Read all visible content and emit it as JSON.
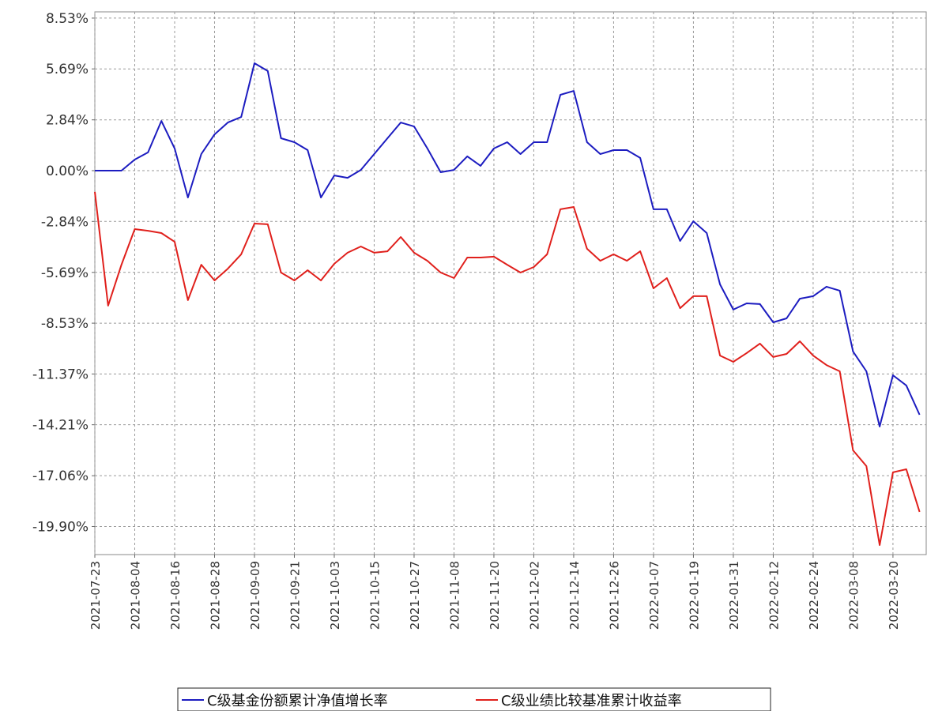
{
  "chart_data": {
    "type": "line",
    "x": [
      "2021-07-23",
      "2021-07-27",
      "2021-07-31",
      "2021-08-04",
      "2021-08-08",
      "2021-08-12",
      "2021-08-16",
      "2021-08-20",
      "2021-08-24",
      "2021-08-28",
      "2021-09-01",
      "2021-09-05",
      "2021-09-09",
      "2021-09-13",
      "2021-09-17",
      "2021-09-21",
      "2021-09-25",
      "2021-09-29",
      "2021-10-03",
      "2021-10-07",
      "2021-10-11",
      "2021-10-15",
      "2021-10-19",
      "2021-10-23",
      "2021-10-27",
      "2021-10-31",
      "2021-11-04",
      "2021-11-08",
      "2021-11-12",
      "2021-11-16",
      "2021-11-20",
      "2021-11-24",
      "2021-11-28",
      "2021-12-02",
      "2021-12-06",
      "2021-12-10",
      "2021-12-14",
      "2021-12-18",
      "2021-12-22",
      "2021-12-26",
      "2021-12-30",
      "2022-01-03",
      "2022-01-07",
      "2022-01-11",
      "2022-01-15",
      "2022-01-19",
      "2022-01-23",
      "2022-01-27",
      "2022-01-31",
      "2022-02-04",
      "2022-02-08",
      "2022-02-12",
      "2022-02-16",
      "2022-02-20",
      "2022-02-24",
      "2022-02-28",
      "2022-03-04",
      "2022-03-08",
      "2022-03-12",
      "2022-03-16",
      "2022-03-20",
      "2022-03-24",
      "2022-03-28"
    ],
    "xlim": [
      "2021-07-23",
      "2022-03-30"
    ],
    "xticks": [
      "2021-07-23",
      "2021-08-04",
      "2021-08-16",
      "2021-08-28",
      "2021-09-09",
      "2021-09-21",
      "2021-10-03",
      "2021-10-15",
      "2021-10-27",
      "2021-11-08",
      "2021-11-20",
      "2021-12-02",
      "2021-12-14",
      "2021-12-26",
      "2022-01-07",
      "2022-01-19",
      "2022-01-31",
      "2022-02-12",
      "2022-02-24",
      "2022-03-08",
      "2022-03-20"
    ],
    "ylim": [
      -21.47,
      8.88
    ],
    "yticks": [
      {
        "value": 8.53,
        "label": "8.53%"
      },
      {
        "value": 5.69,
        "label": "5.69%"
      },
      {
        "value": 2.84,
        "label": "2.84%"
      },
      {
        "value": 0,
        "label": "0.00%"
      },
      {
        "value": -2.84,
        "label": "-2.84%"
      },
      {
        "value": -5.69,
        "label": "-5.69%"
      },
      {
        "value": -8.53,
        "label": "-8.53%"
      },
      {
        "value": -11.37,
        "label": "-11.37%"
      },
      {
        "value": -14.21,
        "label": "-14.21%"
      },
      {
        "value": -17.06,
        "label": "-17.06%"
      },
      {
        "value": -19.9,
        "label": "-19.90%"
      }
    ],
    "grid": true,
    "series": [
      {
        "name": "C级基金份额累计净值增长率",
        "color": "#1c1cc0",
        "values": [
          0,
          0,
          0,
          0.62,
          1.02,
          2.78,
          1.24,
          -1.5,
          0.93,
          2.03,
          2.69,
          3.0,
          6.01,
          5.57,
          1.81,
          1.59,
          1.15,
          -1.5,
          -0.27,
          -0.4,
          0.04,
          0.93,
          1.81,
          2.69,
          2.47,
          1.24,
          -0.09,
          0.04,
          0.8,
          0.27,
          1.24,
          1.59,
          0.93,
          1.59,
          1.59,
          4.24,
          4.46,
          1.59,
          0.93,
          1.15,
          1.15,
          0.71,
          -2.16,
          -2.16,
          -3.93,
          -2.83,
          -3.49,
          -6.36,
          -7.77,
          -7.42,
          -7.46,
          -8.48,
          -8.26,
          -7.16,
          -7.02,
          -6.49,
          -6.71,
          -10.11,
          -11.22,
          -14.31,
          -11.44,
          -12.01,
          -13.65
        ]
      },
      {
        "name": "C级业绩比较基准累计收益率",
        "color": "#e0201c",
        "values": [
          -1.19,
          -7.55,
          -5.26,
          -3.27,
          -3.36,
          -3.49,
          -3.98,
          -7.24,
          -5.26,
          -6.14,
          -5.48,
          -4.68,
          -2.96,
          -3.0,
          -5.7,
          -6.14,
          -5.57,
          -6.14,
          -5.21,
          -4.59,
          -4.24,
          -4.59,
          -4.51,
          -3.71,
          -4.59,
          -5.04,
          -5.7,
          -6.01,
          -4.86,
          -4.86,
          -4.81,
          -5.26,
          -5.7,
          -5.39,
          -4.68,
          -2.16,
          -2.03,
          -4.37,
          -5.04,
          -4.68,
          -5.04,
          -4.51,
          -6.58,
          -6.01,
          -7.69,
          -7.02,
          -7.02,
          -10.34,
          -10.69,
          -10.2,
          -9.67,
          -10.42,
          -10.25,
          -9.54,
          -10.34,
          -10.87,
          -11.22,
          -15.64,
          -16.52,
          -20.94,
          -16.87,
          -16.7,
          -19.08
        ]
      }
    ]
  }
}
